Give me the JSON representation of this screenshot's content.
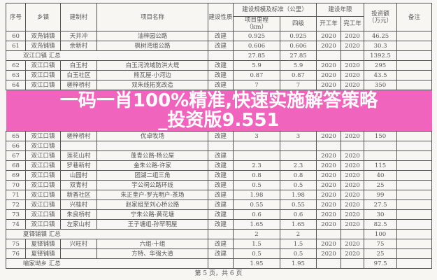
{
  "headers": {
    "seq": "序号",
    "town": "乡镇",
    "village": "建制村",
    "project": "项目名称",
    "nature": "建设性质",
    "scale": "建设规模及标准（公里）",
    "mileage": "项目里程（km）",
    "grade4": "四级",
    "period": "建设年限",
    "start": "开工年",
    "end": "完工年",
    "invest": "投资额（万元）",
    "remark": "备注"
  },
  "rows": [
    {
      "type": "row",
      "seq": "60",
      "town": "双凫铺镇",
      "village": "天井冲",
      "project": "油梓园公路",
      "nature": "改建",
      "mileage": "0.925",
      "grade4": "0.925",
      "start": "2020",
      "end": "2020",
      "invest": "46.25"
    },
    {
      "type": "row",
      "seq": "61",
      "town": "双凫铺镇",
      "village": "余新村",
      "project": "枫树湾组公路",
      "nature": "改建",
      "mileage": "0.606",
      "grade4": "0.606",
      "start": "2020",
      "end": "2020",
      "invest": "30.3"
    },
    {
      "type": "sum",
      "label": "双江口镇 汇总",
      "mileage": "27.85",
      "grade4": "27.85",
      "invest": "1392.5"
    },
    {
      "type": "row",
      "seq": "62",
      "town": "双江口镇",
      "village": "白玉村",
      "project": "白玉河流域防洪大堤",
      "nature": "改建",
      "mileage": "5.9",
      "grade4": "5.9",
      "start": "2020",
      "end": "2020",
      "invest": "295"
    },
    {
      "type": "row",
      "seq": "63",
      "town": "双江口镇",
      "village": "白玉社区",
      "project": "熊瓦屋-小河边",
      "nature": "改建",
      "mileage": "0.87",
      "grade4": "0.87",
      "start": "2020",
      "end": "2020",
      "invest": "43.5"
    },
    {
      "type": "row",
      "seq": "64",
      "town": "双江口镇",
      "village": "槎梓桥村",
      "project": "双朱线拓宽改造",
      "nature": "改建",
      "mileage": "7",
      "grade4": "7",
      "start": "2020",
      "end": "2020",
      "invest": "350"
    },
    {
      "type": "row",
      "seq": "65",
      "town": "双江口镇",
      "village": "槎梓桥村",
      "project": "优卓牧场",
      "nature": "改建",
      "mileage": "3",
      "grade4": "3",
      "start": "2020",
      "end": "2020",
      "invest": "150"
    },
    {
      "type": "row",
      "seq": "66",
      "town": "双江口镇",
      "village": "",
      "project": "",
      "nature": "",
      "mileage": "",
      "grade4": "",
      "start": "",
      "end": "",
      "invest": ""
    },
    {
      "type": "row",
      "seq": "67",
      "town": "双江口镇",
      "village": "莲花山村",
      "project": "蓬青公路-杨公屋",
      "nature": "改建",
      "mileage": "",
      "grade4": "",
      "start": "2020",
      "end": "2020",
      "invest": ""
    },
    {
      "type": "row",
      "seq": "68",
      "town": "双江口镇",
      "village": "罗巷新村",
      "project": "金朱公路-许家",
      "nature": "改建",
      "mileage": "2.3",
      "grade4": "2.3",
      "start": "2020",
      "end": "2020",
      "invest": "115"
    },
    {
      "type": "row",
      "seq": "69",
      "town": "双江口镇",
      "village": "山园村",
      "project": "团湖二组三角",
      "nature": "改建",
      "mileage": "0.8",
      "grade4": "0.8",
      "start": "2020",
      "end": "2020",
      "invest": "40"
    },
    {
      "type": "row",
      "seq": "70",
      "town": "双江口镇",
      "village": "双青村",
      "project": "宇公祠公路环线",
      "nature": "改建",
      "mileage": "0.5",
      "grade4": "0.5",
      "start": "2020",
      "end": "2020",
      "invest": "25"
    },
    {
      "type": "row",
      "seq": "71",
      "town": "双江口镇",
      "village": "新香社区",
      "project": "朱正奎户-罗光明户-茶场",
      "nature": "改建",
      "mileage": "1.98",
      "grade4": "1.98",
      "start": "2020",
      "end": "2020",
      "invest": "99"
    },
    {
      "type": "row",
      "seq": "72",
      "town": "双江口镇",
      "village": "兴桂村",
      "project": "赵家组至刘心桥公路",
      "nature": "改建",
      "mileage": "0.55",
      "grade4": "0.55",
      "start": "2020",
      "end": "2020",
      "invest": "27.5"
    },
    {
      "type": "row",
      "seq": "73",
      "town": "双江口镇",
      "village": "朱良桥村",
      "project": "宁朱公路-黄花塘",
      "nature": "改建",
      "mileage": "0.6",
      "grade4": "0.6",
      "start": "2020",
      "end": "2020",
      "invest": "30"
    },
    {
      "type": "row",
      "seq": "74",
      "town": "双江口镇",
      "village": "左家山村",
      "project": "王子塘组-孙罕明屋",
      "nature": "改建",
      "mileage": "1.65",
      "grade4": "1.65",
      "start": "2020",
      "end": "2020",
      "invest": "82.5"
    },
    {
      "type": "sum",
      "label": "夏铎铺镇 汇总",
      "mileage": "2",
      "grade4": "2",
      "invest": "100"
    },
    {
      "type": "row",
      "seq": "75",
      "town": "夏铎铺镇",
      "village": "兴旺村",
      "project": "六组-十组",
      "nature": "改建",
      "mileage": "1.5",
      "grade4": "1.5",
      "start": "2020",
      "end": "2020",
      "invest": "75"
    },
    {
      "type": "row",
      "seq": "76",
      "town": "夏铎铺镇",
      "village": "",
      "project": "方特、华强大道",
      "nature": "改建",
      "mileage": "0.5",
      "grade4": "0.5",
      "start": "2020",
      "end": "2020",
      "invest": "25"
    },
    {
      "type": "sum",
      "label": "喻家坳乡 汇总",
      "mileage": "1.95",
      "grade4": "1.95",
      "invest": "97.5"
    }
  ],
  "banner": {
    "line1": "一码一肖100%精准,快速实施解答策略",
    "line2": "_投资版9.551",
    "color": "#f064be"
  },
  "footer": "第 5 页，共 6 页"
}
